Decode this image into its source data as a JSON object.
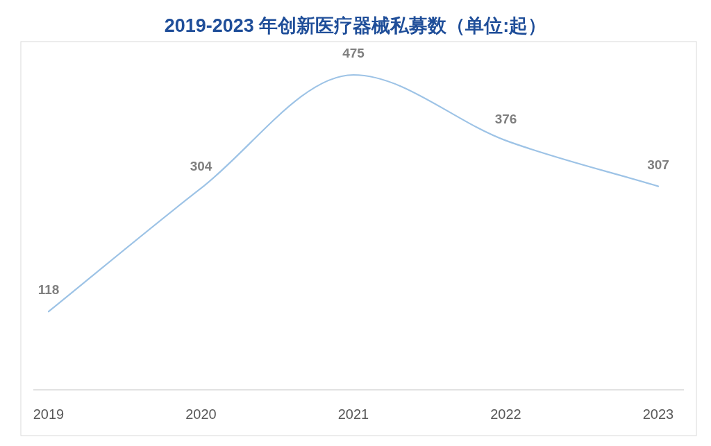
{
  "chart_data": {
    "type": "line",
    "title": "2019-2023 年创新医疗器械私募数（单位:起）",
    "categories": [
      "2019",
      "2020",
      "2021",
      "2022",
      "2023"
    ],
    "series": [
      {
        "color": "#9dc3e6",
        "values": [
          118,
          304,
          475,
          376,
          307
        ]
      }
    ],
    "data_labels": true
  }
}
